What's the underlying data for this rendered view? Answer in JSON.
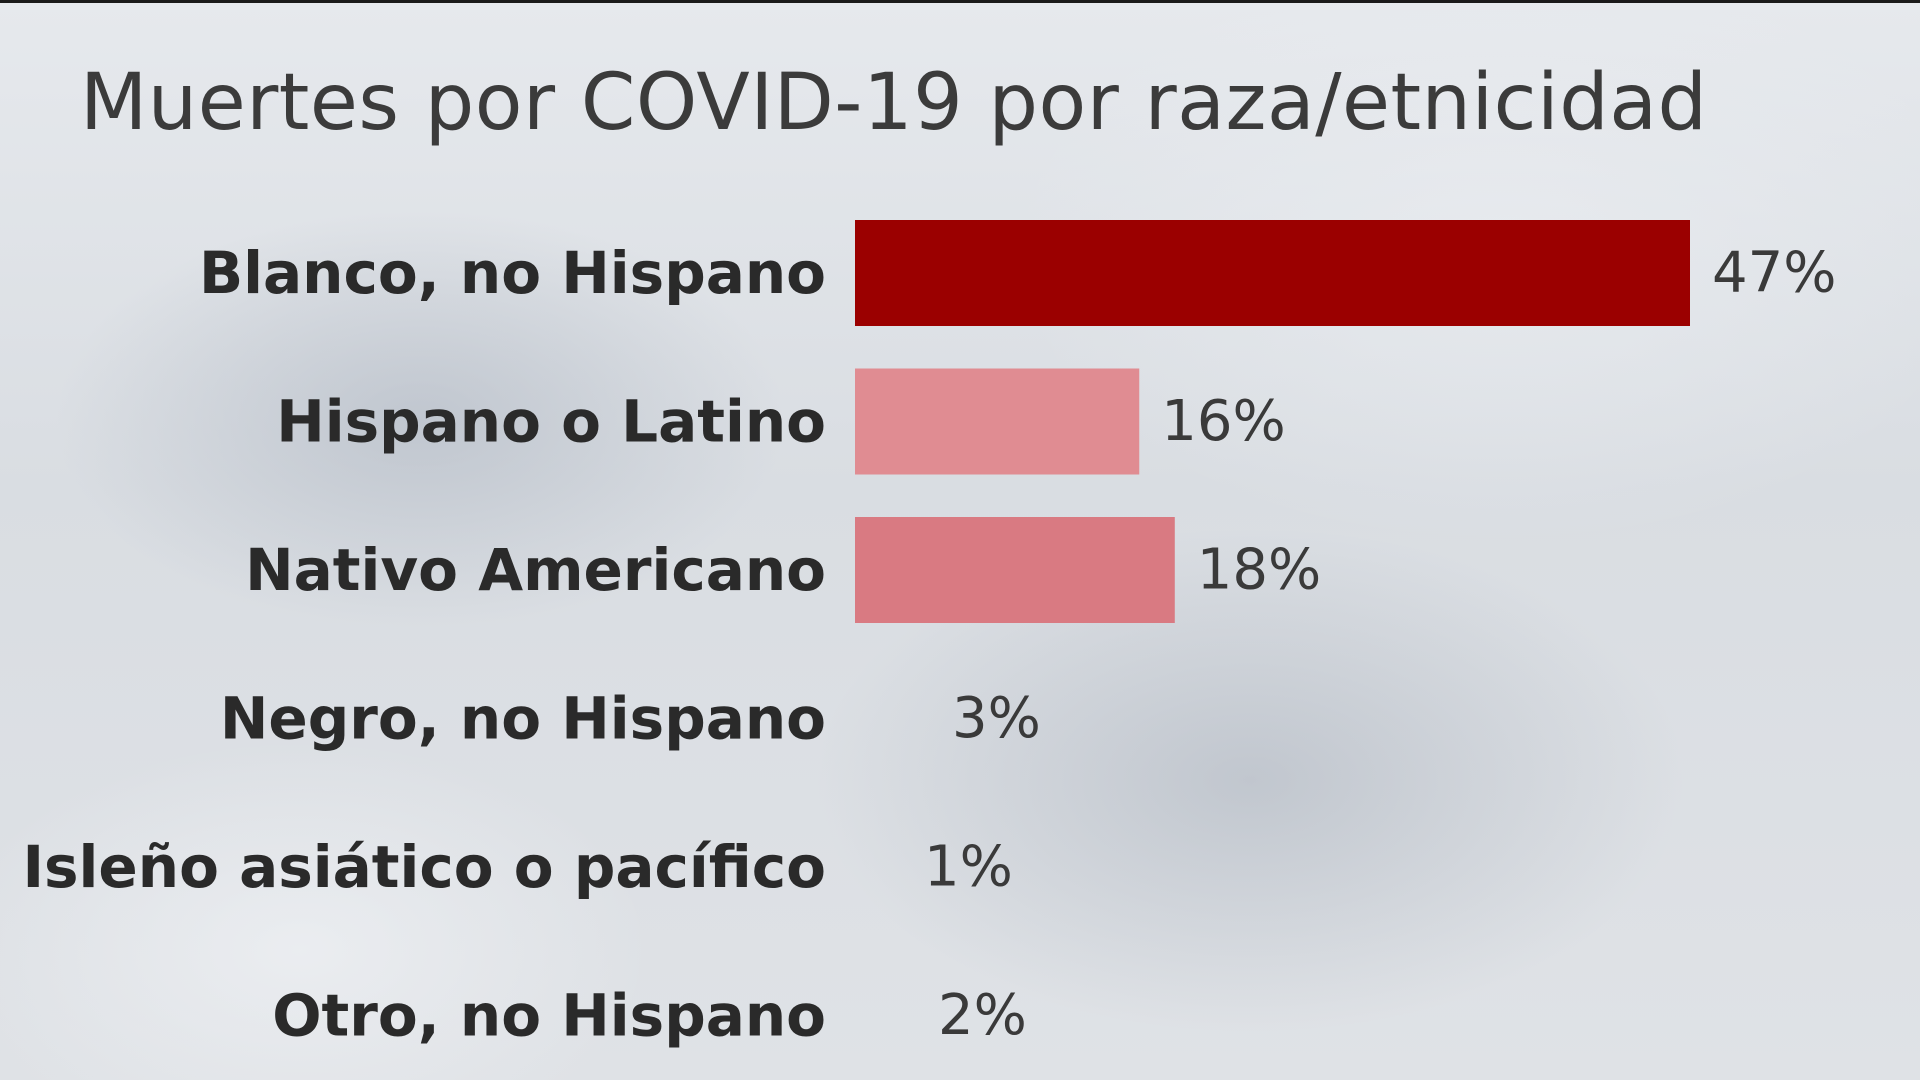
{
  "chart_data": {
    "type": "bar",
    "orientation": "horizontal",
    "title": "Muertes por COVID-19 por raza/etnicidad",
    "categories": [
      "Blanco, no Hispano",
      "Hispano o Latino",
      "Nativo Americano",
      "Negro, no Hispano",
      "Isleño asiático o pacífico",
      "Otro, no Hispano"
    ],
    "values": [
      47,
      16,
      18,
      3,
      1,
      2
    ],
    "value_labels": [
      "47%",
      "16%",
      "18%",
      "3%",
      "1%",
      "2%"
    ],
    "unit": "%",
    "colors": [
      "#9b0000",
      "#e08c92",
      "#d97a82",
      null,
      null,
      null
    ],
    "xlim": [
      0,
      47
    ],
    "grid": false,
    "legend": "none"
  }
}
